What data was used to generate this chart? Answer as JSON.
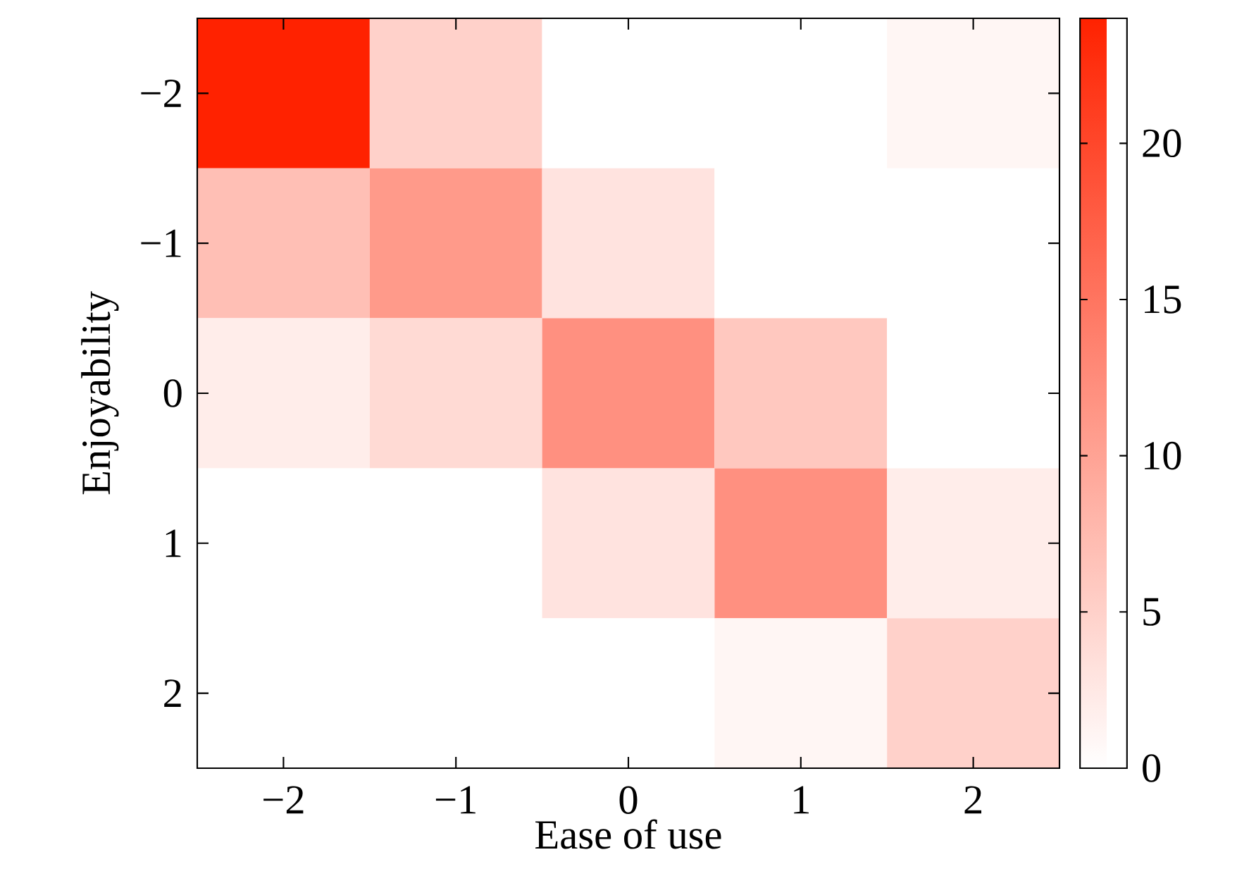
{
  "chart_data": {
    "type": "heatmap",
    "xlabel": "Ease of use",
    "ylabel": "Enjoyability",
    "categories": [
      "−2",
      "−1",
      "0",
      "1",
      "2"
    ],
    "y_categories": [
      "−2",
      "−1",
      "0",
      "1",
      "2"
    ],
    "cells": [
      [
        24,
        5,
        0,
        0,
        1
      ],
      [
        7,
        11,
        3,
        0,
        0
      ],
      [
        2,
        4,
        12,
        6,
        0
      ],
      [
        0,
        0,
        3,
        12,
        2
      ],
      [
        0,
        0,
        0,
        1,
        5
      ]
    ],
    "clim": [
      0,
      24
    ],
    "cticks": [
      0,
      5,
      10,
      15,
      20
    ]
  }
}
